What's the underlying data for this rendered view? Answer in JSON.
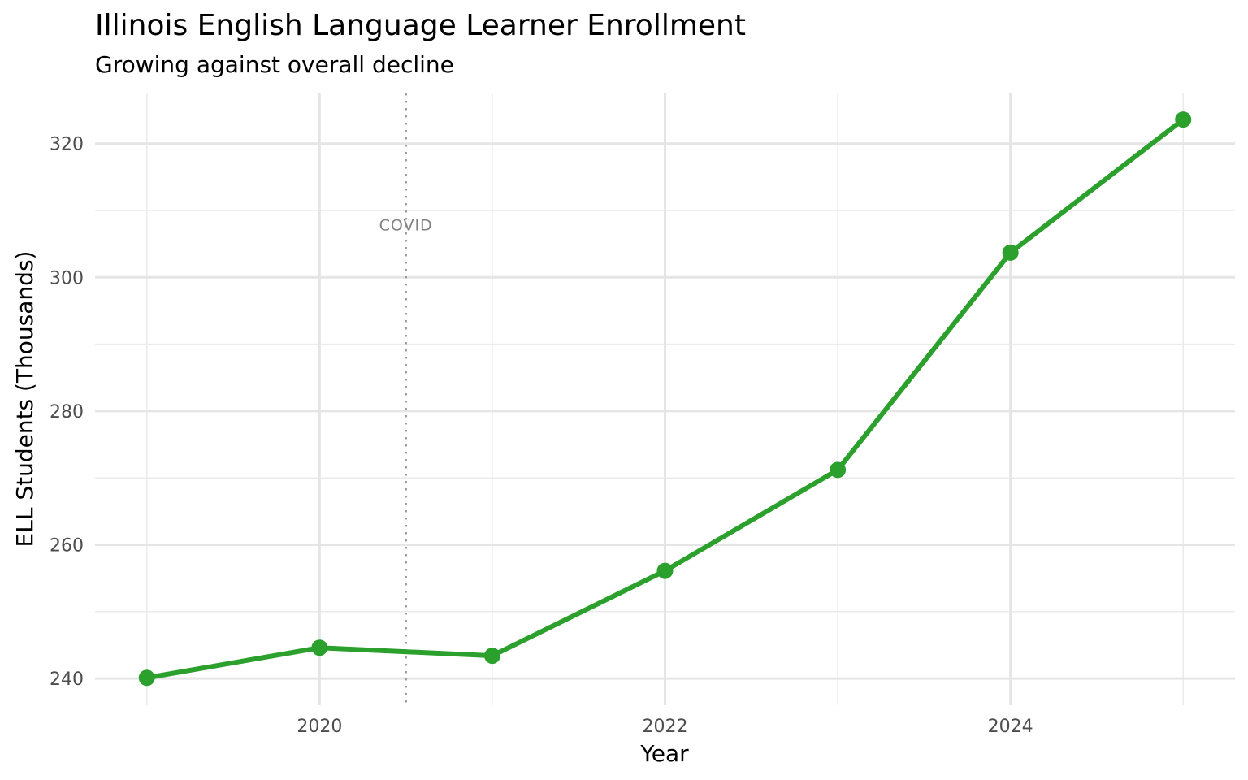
{
  "chart_data": {
    "type": "line",
    "title": "Illinois English Language Learner Enrollment",
    "subtitle": "Growing against overall decline",
    "xlabel": "Year",
    "ylabel": "ELL Students (Thousands)",
    "x": [
      2019,
      2020,
      2021,
      2022,
      2023,
      2024,
      2025
    ],
    "series": [
      {
        "values": [
          240.1,
          244.6,
          243.4,
          256.1,
          271.2,
          303.7,
          323.6
        ],
        "color": "#2ca02c"
      }
    ],
    "xlim": [
      2018.7,
      2025.3
    ],
    "ylim": [
      236.0,
      327.5
    ],
    "x_ticks": [
      2020,
      2022,
      2024
    ],
    "x_tick_labels": [
      "2020",
      "2022",
      "2024"
    ],
    "y_ticks": [
      240,
      260,
      280,
      300,
      320
    ],
    "y_tick_labels": [
      "240",
      "260",
      "280",
      "300",
      "320"
    ],
    "x_minor_ticks": [
      2019,
      2021,
      2023,
      2025
    ],
    "y_minor_ticks": [
      250,
      270,
      290,
      310
    ],
    "grid": true,
    "legend": "none",
    "annotations": [
      {
        "text": "COVID",
        "x": 2020.5,
        "y": 307,
        "line_style": "dotted",
        "color": "#999999"
      }
    ]
  }
}
